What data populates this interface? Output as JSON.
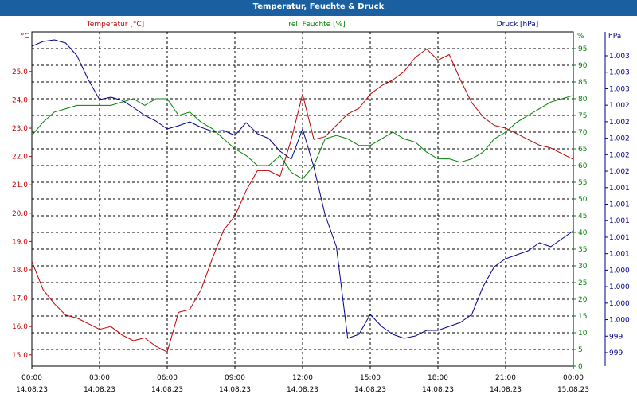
{
  "title": "Temperatur, Feuchte & Druck",
  "colors": {
    "temperature": "#c00000",
    "humidity": "#008000",
    "pressure": "#00008b",
    "titlebar": "#1a5fa0",
    "grid": "#000000"
  },
  "chart_data": {
    "type": "line",
    "title": "Temperatur, Feuchte & Druck",
    "grid": true,
    "x_ticks": [
      {
        "time": "00:00",
        "date": "14.08.23"
      },
      {
        "time": "03:00",
        "date": "14.08.23"
      },
      {
        "time": "06:00",
        "date": "14.08.23"
      },
      {
        "time": "09:00",
        "date": "14.08.23"
      },
      {
        "time": "12:00",
        "date": "14.08.23"
      },
      {
        "time": "15:00",
        "date": "14.08.23"
      },
      {
        "time": "18:00",
        "date": "14.08.23"
      },
      {
        "time": "21:00",
        "date": "14.08.23"
      },
      {
        "time": "00:00",
        "date": "15.08.23"
      }
    ],
    "x_range_hours": [
      0,
      24
    ],
    "axes": {
      "temperature": {
        "label": "Temperatur [°C]",
        "unit": "°C",
        "range": [
          14.6,
          26.4
        ],
        "ticks": [
          "15.0",
          "16.0",
          "17.0",
          "18.0",
          "19.0",
          "20.0",
          "21.0",
          "22.0",
          "23.0",
          "24.0",
          "25.0"
        ],
        "tick_values": [
          15,
          16,
          17,
          18,
          19,
          20,
          21,
          22,
          23,
          24,
          25
        ]
      },
      "humidity": {
        "label": "rel. Feuchte [%]",
        "unit": "%",
        "range": [
          0,
          100
        ],
        "ticks": [
          "0",
          "5",
          "10",
          "15",
          "20",
          "25",
          "30",
          "35",
          "40",
          "45",
          "50",
          "55",
          "60",
          "65",
          "70",
          "75",
          "80",
          "85",
          "90",
          "95"
        ],
        "tick_values": [
          0,
          5,
          10,
          15,
          20,
          25,
          30,
          35,
          40,
          45,
          50,
          55,
          60,
          65,
          70,
          75,
          80,
          85,
          90,
          95
        ]
      },
      "pressure": {
        "label": "Druck [hPa]",
        "unit": "hPa",
        "range": [
          998.9,
          1003.1
        ],
        "ticks": [
          "999",
          "999",
          "1.000",
          "1.000",
          "1.000",
          "1.000",
          "1.001",
          "1.001",
          "1.001",
          "1.001",
          "1.001",
          "1.002",
          "1.002",
          "1.002",
          "1.002",
          "1.002",
          "1.003",
          "1.003",
          "1.003"
        ]
      }
    },
    "series": [
      {
        "name": "Temperatur [°C]",
        "axis": "temperature",
        "x": [
          0,
          0.5,
          1,
          1.5,
          2,
          2.5,
          3,
          3.5,
          4,
          4.5,
          5,
          5.5,
          6,
          6.5,
          7,
          7.5,
          8,
          8.5,
          9,
          9.5,
          10,
          10.5,
          11,
          11.5,
          12,
          12.5,
          13,
          13.5,
          14,
          14.5,
          15,
          15.5,
          16,
          16.5,
          17,
          17.5,
          18,
          18.5,
          19,
          19.5,
          20,
          20.5,
          21,
          21.5,
          22,
          22.5,
          23,
          23.5,
          24
        ],
        "values": [
          18.3,
          17.3,
          16.8,
          16.4,
          16.3,
          16.1,
          15.9,
          16.0,
          15.7,
          15.5,
          15.6,
          15.3,
          15.1,
          16.5,
          16.6,
          17.3,
          18.4,
          19.4,
          19.9,
          20.8,
          21.5,
          21.5,
          21.3,
          22.6,
          24.2,
          22.6,
          22.7,
          23.1,
          23.5,
          23.7,
          24.2,
          24.5,
          24.7,
          25.0,
          25.5,
          25.8,
          25.4,
          25.6,
          24.7,
          23.9,
          23.4,
          23.1,
          23.0,
          22.8,
          22.6,
          22.4,
          22.3,
          22.1,
          21.9
        ]
      },
      {
        "name": "rel. Feuchte [%]",
        "axis": "humidity",
        "x": [
          0,
          0.5,
          1,
          1.5,
          2,
          2.5,
          3,
          3.5,
          4,
          4.5,
          5,
          5.5,
          6,
          6.5,
          7,
          7.5,
          8,
          8.5,
          9,
          9.5,
          10,
          10.5,
          11,
          11.5,
          12,
          12.5,
          13,
          13.5,
          14,
          14.5,
          15,
          15.5,
          16,
          16.5,
          17,
          17.5,
          18,
          18.5,
          19,
          19.5,
          20,
          20.5,
          21,
          21.5,
          22,
          22.5,
          23,
          23.5,
          24
        ],
        "values": [
          69,
          73,
          76,
          77,
          78,
          78,
          78,
          78,
          79,
          80,
          78,
          80,
          80,
          75,
          76,
          73,
          71,
          68,
          65,
          63,
          60,
          60,
          63,
          58,
          56,
          60,
          68,
          69,
          68,
          66,
          66,
          68,
          70,
          68,
          67,
          64,
          62,
          62,
          61,
          62,
          64,
          68,
          70,
          73,
          75,
          77,
          79,
          80,
          81
        ]
      },
      {
        "name": "Druck [hPa]",
        "axis": "pressure",
        "x": [
          0,
          0.5,
          1,
          1.5,
          2,
          2.5,
          3,
          3.5,
          4,
          4.5,
          5,
          5.5,
          6,
          6.5,
          7,
          7.5,
          8,
          8.5,
          9,
          9.5,
          10,
          10.5,
          11,
          11.5,
          12,
          12.5,
          13,
          13.5,
          14,
          14.5,
          15,
          15.5,
          16,
          16.5,
          17,
          17.5,
          18,
          18.5,
          19,
          19.5,
          20,
          20.5,
          21,
          21.5,
          22,
          22.5,
          23,
          23.5,
          24
        ],
        "values": [
          1002.92,
          1002.98,
          1003.0,
          1002.96,
          1002.8,
          1002.5,
          1002.25,
          1002.28,
          1002.24,
          1002.15,
          1002.05,
          1001.98,
          1001.88,
          1001.92,
          1001.97,
          1001.9,
          1001.85,
          1001.86,
          1001.8,
          1001.96,
          1001.82,
          1001.76,
          1001.6,
          1001.5,
          1001.88,
          1001.4,
          1000.8,
          1000.4,
          999.25,
          999.3,
          999.55,
          999.4,
          999.3,
          999.25,
          999.28,
          999.35,
          999.35,
          999.4,
          999.45,
          999.55,
          999.9,
          1000.15,
          1000.25,
          1000.3,
          1000.35,
          1000.45,
          1000.4,
          1000.5,
          1000.6
        ]
      }
    ]
  }
}
